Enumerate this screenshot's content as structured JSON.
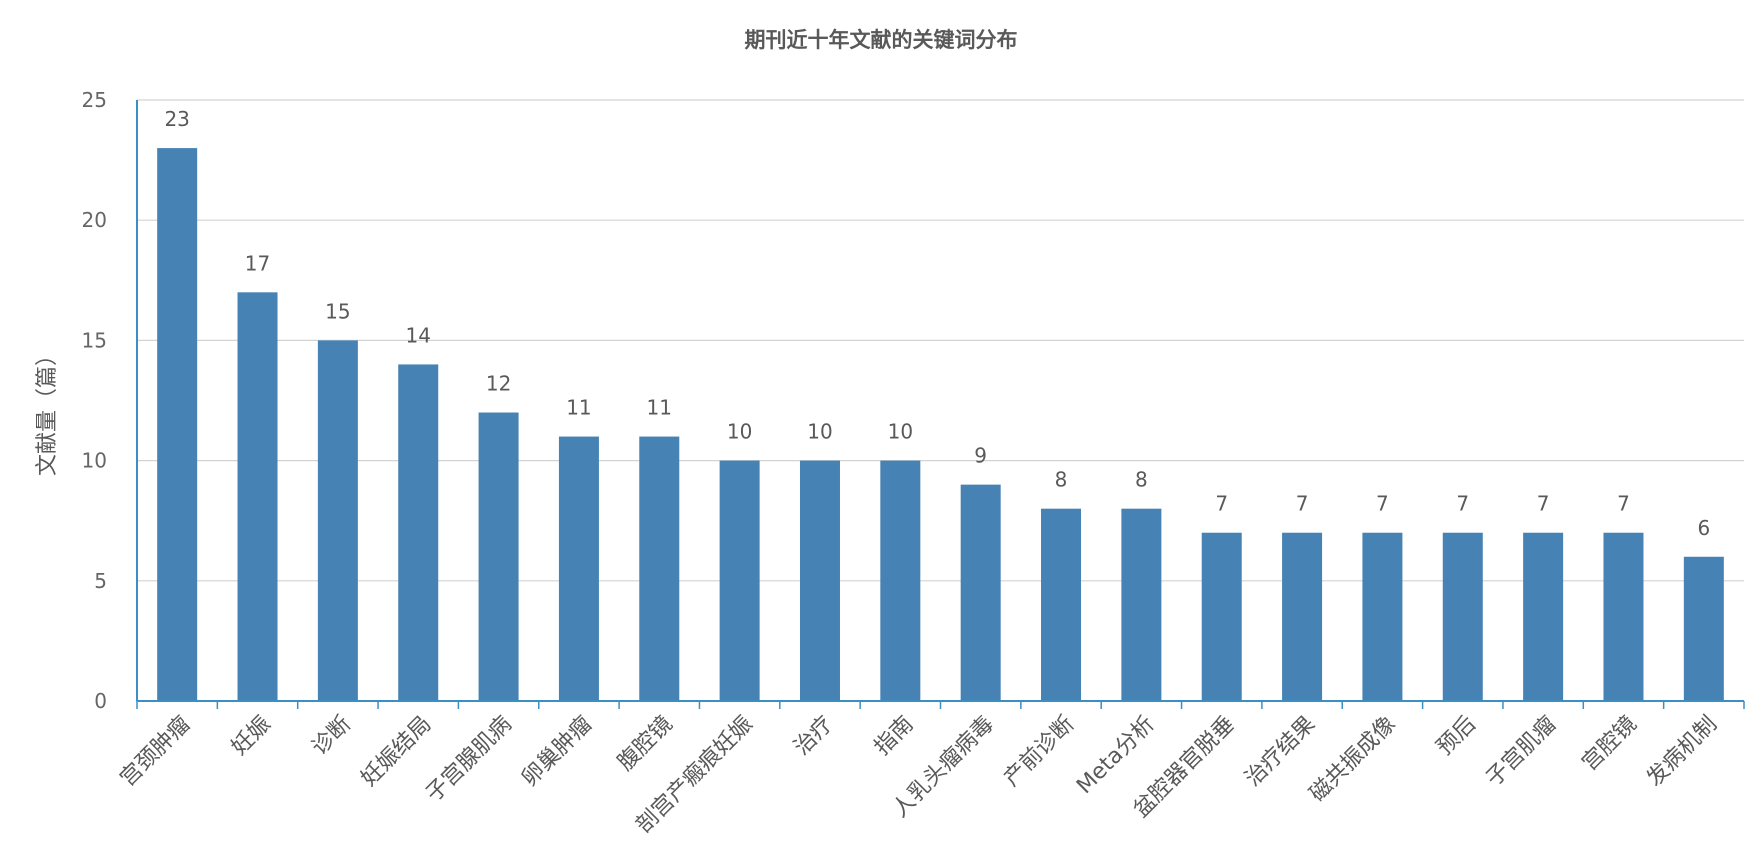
{
  "chart_data": {
    "type": "bar",
    "title": "期刊近十年文献的关键词分布",
    "xlabel": "",
    "ylabel": "文献量（篇）",
    "ylim": [
      0,
      25
    ],
    "yticks": [
      0,
      5,
      10,
      15,
      20,
      25
    ],
    "grid": true,
    "legend": "none",
    "categories": [
      "宫颈肿瘤",
      "妊娠",
      "诊断",
      "妊娠结局",
      "子宫腺肌病",
      "卵巢肿瘤",
      "腹腔镜",
      "剖宫产瘢痕妊娠",
      "治疗",
      "指南",
      "人乳头瘤病毒",
      "产前诊断",
      "Meta分析",
      "盆腔器官脱垂",
      "治疗结果",
      "磁共振成像",
      "预后",
      "子宫肌瘤",
      "宫腔镜",
      "发病机制"
    ],
    "values": [
      23,
      17,
      15,
      14,
      12,
      11,
      11,
      10,
      10,
      10,
      9,
      8,
      8,
      7,
      7,
      7,
      7,
      7,
      7,
      6
    ],
    "colors": {
      "bar": "#4682b4",
      "axis": "#3a8fc4",
      "grid": "#d3d3d3"
    }
  }
}
